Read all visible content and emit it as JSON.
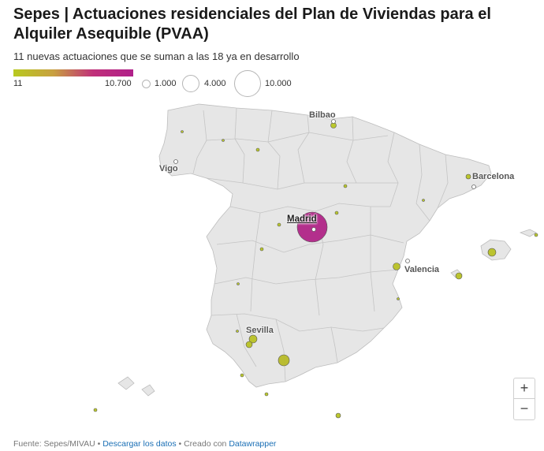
{
  "header": {
    "title": "Sepes | Actuaciones residenciales del Plan de Viviendas para el Alquiler Asequible (PVAA)",
    "subtitle": "11 nuevas actuaciones que se suman a las 18 ya en desarrollo"
  },
  "legend": {
    "color_min": "11",
    "color_max": "10.700",
    "color_low": "#b8c920",
    "color_high": "#b0208a",
    "sizes": [
      "1.000",
      "4.000",
      "10.000"
    ]
  },
  "map": {
    "land_color": "#e6e6e6",
    "border_color": "#bdbdbd",
    "cities": {
      "bilbao": "Bilbao",
      "vigo": "Vigo",
      "barcelona": "Barcelona",
      "madrid": "Madrid",
      "valencia": "Valencia",
      "sevilla": "Sevilla"
    }
  },
  "controls": {
    "zoom_in": "+",
    "zoom_out": "−"
  },
  "footer": {
    "source_prefix": "Fuente: Sepes/MIVAU",
    "sep1": " • ",
    "download": "Descargar los datos",
    "sep2": " • Creado con ",
    "tool": "Datawrapper"
  }
}
